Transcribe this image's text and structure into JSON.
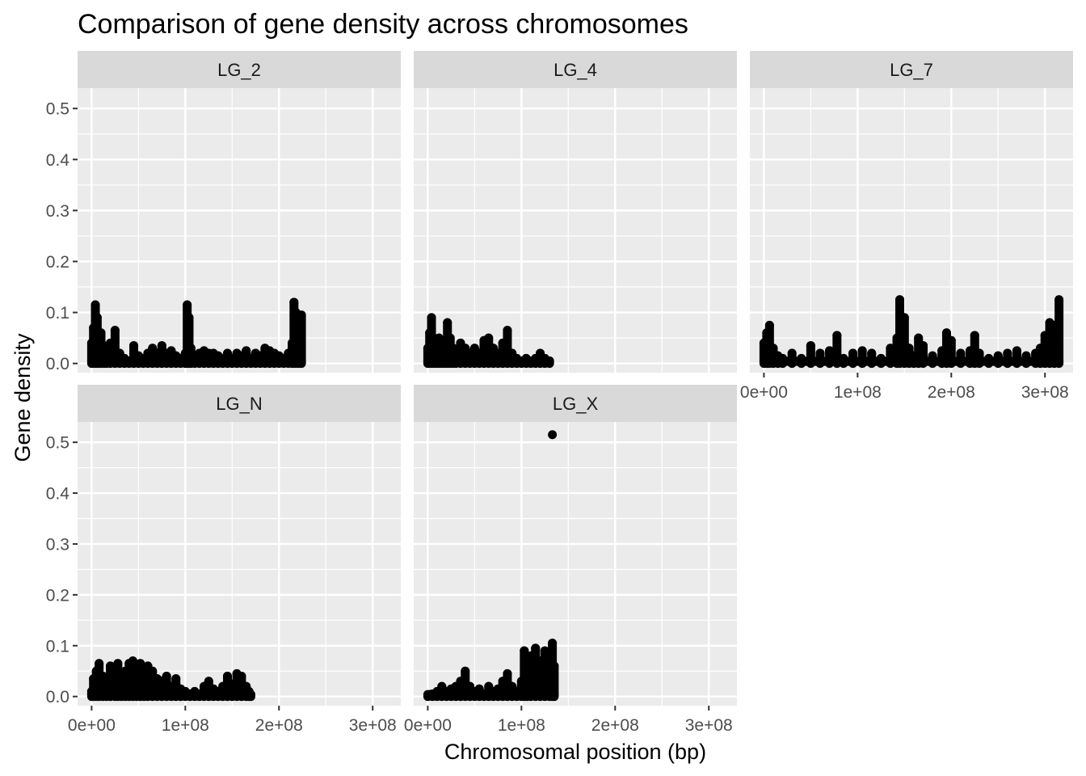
{
  "chart_data": {
    "type": "scatter",
    "title": "Comparison of gene density across chromosomes",
    "xlabel": "Chromosomal position (bp)",
    "ylabel": "Gene density",
    "xlim": [
      -15000000,
      330000000
    ],
    "ylim": [
      -0.018,
      0.54
    ],
    "x_ticks": [
      0,
      100000000,
      200000000,
      300000000
    ],
    "x_tick_labels": [
      "0e+00",
      "1e+08",
      "2e+08",
      "3e+08"
    ],
    "y_ticks": [
      0,
      0.1,
      0.2,
      0.3,
      0.4,
      0.5
    ],
    "y_tick_labels": [
      "0.0",
      "0.1",
      "0.2",
      "0.3",
      "0.4",
      "0.5"
    ],
    "grid": true,
    "facets": [
      {
        "label": "LG_2",
        "x": [
          0,
          2000000,
          4000000,
          6000000,
          8000000,
          10000000,
          13000000,
          16000000,
          20000000,
          25000000,
          30000000,
          35000000,
          40000000,
          45000000,
          50000000,
          55000000,
          60000000,
          65000000,
          70000000,
          75000000,
          80000000,
          85000000,
          90000000,
          95000000,
          100000000,
          102000000,
          104000000,
          106000000,
          110000000,
          115000000,
          120000000,
          125000000,
          130000000,
          135000000,
          140000000,
          145000000,
          150000000,
          155000000,
          160000000,
          165000000,
          170000000,
          175000000,
          180000000,
          185000000,
          190000000,
          195000000,
          200000000,
          205000000,
          210000000,
          214000000,
          216000000,
          218000000,
          220000000,
          222000000,
          224000000
        ],
        "y": [
          0.04,
          0.07,
          0.115,
          0.09,
          0.05,
          0.06,
          0.035,
          0.02,
          0.04,
          0.065,
          0.02,
          0.01,
          0.005,
          0.035,
          0.015,
          0.01,
          0.02,
          0.03,
          0.02,
          0.035,
          0.02,
          0.025,
          0.015,
          0.01,
          0.02,
          0.115,
          0.09,
          0.03,
          0.015,
          0.02,
          0.025,
          0.02,
          0.02,
          0.015,
          0.01,
          0.02,
          0.01,
          0.02,
          0.015,
          0.025,
          0.01,
          0.02,
          0.015,
          0.03,
          0.025,
          0.02,
          0.015,
          0.01,
          0.02,
          0.04,
          0.12,
          0.1,
          0.09,
          0.06,
          0.095
        ]
      },
      {
        "label": "LG_4",
        "x": [
          0,
          2000000,
          4000000,
          6000000,
          9000000,
          12000000,
          15000000,
          18000000,
          21000000,
          24000000,
          27000000,
          30000000,
          35000000,
          40000000,
          45000000,
          50000000,
          55000000,
          60000000,
          65000000,
          70000000,
          75000000,
          80000000,
          85000000,
          90000000,
          95000000,
          100000000,
          105000000,
          110000000,
          115000000,
          120000000,
          125000000,
          130000000
        ],
        "y": [
          0.03,
          0.06,
          0.09,
          0.05,
          0.04,
          0.05,
          0.03,
          0.02,
          0.08,
          0.05,
          0.03,
          0.02,
          0.04,
          0.03,
          0.02,
          0.03,
          0.02,
          0.045,
          0.05,
          0.03,
          0.02,
          0.04,
          0.065,
          0.02,
          0.01,
          0.005,
          0.01,
          0.005,
          0.01,
          0.02,
          0.01,
          0.005
        ]
      },
      {
        "label": "LG_7",
        "x": [
          0,
          3000000,
          6000000,
          10000000,
          15000000,
          20000000,
          30000000,
          40000000,
          50000000,
          60000000,
          70000000,
          78000000,
          85000000,
          95000000,
          105000000,
          115000000,
          125000000,
          135000000,
          142000000,
          145000000,
          150000000,
          155000000,
          160000000,
          165000000,
          170000000,
          180000000,
          190000000,
          195000000,
          200000000,
          210000000,
          220000000,
          225000000,
          230000000,
          240000000,
          250000000,
          260000000,
          270000000,
          280000000,
          290000000,
          295000000,
          300000000,
          305000000,
          310000000,
          315000000
        ],
        "y": [
          0.04,
          0.06,
          0.075,
          0.03,
          0.015,
          0.01,
          0.02,
          0.01,
          0.035,
          0.02,
          0.025,
          0.055,
          0.01,
          0.02,
          0.025,
          0.02,
          0.01,
          0.03,
          0.05,
          0.125,
          0.09,
          0.03,
          0.015,
          0.05,
          0.035,
          0.015,
          0.025,
          0.06,
          0.045,
          0.02,
          0.025,
          0.055,
          0.02,
          0.01,
          0.015,
          0.02,
          0.025,
          0.015,
          0.02,
          0.03,
          0.055,
          0.08,
          0.075,
          0.125
        ]
      },
      {
        "label": "LG_N",
        "x": [
          0,
          2000000,
          5000000,
          8000000,
          12000000,
          16000000,
          20000000,
          25000000,
          28000000,
          32000000,
          36000000,
          40000000,
          44000000,
          48000000,
          52000000,
          56000000,
          60000000,
          65000000,
          70000000,
          75000000,
          80000000,
          85000000,
          90000000,
          95000000,
          100000000,
          105000000,
          110000000,
          115000000,
          120000000,
          125000000,
          130000000,
          135000000,
          140000000,
          145000000,
          150000000,
          155000000,
          160000000,
          165000000,
          168000000,
          170000000
        ],
        "y": [
          0.01,
          0.035,
          0.05,
          0.065,
          0.04,
          0.03,
          0.06,
          0.035,
          0.065,
          0.04,
          0.05,
          0.065,
          0.07,
          0.045,
          0.065,
          0.04,
          0.06,
          0.05,
          0.035,
          0.03,
          0.04,
          0.02,
          0.035,
          0.015,
          0.01,
          0.005,
          0.01,
          0.005,
          0.02,
          0.03,
          0.015,
          0.01,
          0.02,
          0.04,
          0.025,
          0.045,
          0.04,
          0.02,
          0.01,
          0.0
        ]
      },
      {
        "label": "LG_X",
        "x": [
          0,
          5000000,
          10000000,
          15000000,
          20000000,
          25000000,
          30000000,
          35000000,
          40000000,
          45000000,
          50000000,
          55000000,
          60000000,
          65000000,
          70000000,
          75000000,
          80000000,
          85000000,
          90000000,
          95000000,
          100000000,
          103000000,
          106000000,
          110000000,
          115000000,
          120000000,
          125000000,
          130000000,
          133000000,
          135000000
        ],
        "y": [
          0.0,
          0.005,
          0.01,
          0.02,
          0.01,
          0.015,
          0.02,
          0.03,
          0.05,
          0.02,
          0.01,
          0.015,
          0.005,
          0.02,
          0.01,
          0.015,
          0.03,
          0.045,
          0.02,
          0.01,
          0.03,
          0.09,
          0.06,
          0.08,
          0.095,
          0.07,
          0.09,
          0.05,
          0.105,
          0.06
        ],
        "outlier": {
          "x": 133000000,
          "y": 0.515
        }
      }
    ]
  }
}
